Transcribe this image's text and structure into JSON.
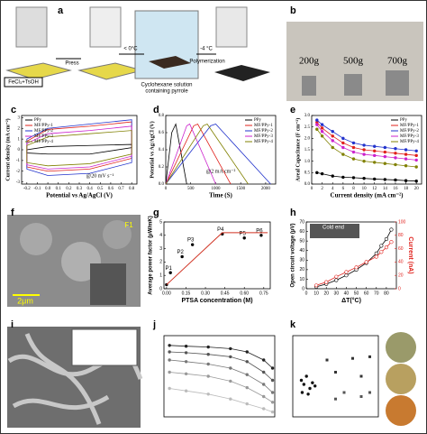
{
  "figure": {
    "labels": [
      "a",
      "b",
      "c",
      "d",
      "e",
      "f",
      "g",
      "h",
      "i",
      "j",
      "k"
    ],
    "a_texts": [
      "FeCl₃+TsOH",
      "Press",
      "< 0°C",
      "Cyclohexane solution",
      "containing pyrrole",
      "-4 °C",
      "Polymerization"
    ],
    "b_texts": [
      "200g",
      "500g",
      "700g"
    ],
    "f_texts": [
      "2μm",
      "F1"
    ]
  },
  "chart_data": [
    {
      "type": "line",
      "closed": true,
      "xlabel": "Potential vs Ag/AgCl (V)",
      "ylabel": "Current density (mA cm⁻²)",
      "annotations": [
        "@20 mV s⁻¹"
      ],
      "legend": "upper left",
      "xlim": [
        -0.25,
        0.85
      ],
      "xticks": [
        -0.2,
        -0.1,
        {
          "value": 0,
          "label": "0.0"
        },
        0.1,
        0.2,
        0.3,
        0.4,
        0.5,
        0.6,
        0.7,
        0.8
      ],
      "ylim": [
        -3.2,
        3.2
      ],
      "yticks": [
        -3,
        -2,
        -1,
        0,
        1,
        2,
        3
      ],
      "series": [
        {
          "name": "PPy",
          "color": "#000000",
          "x": [
            -0.2,
            0,
            0.4,
            0.8,
            0.8,
            0.4,
            0,
            -0.2
          ],
          "values": [
            -0.3,
            -0.4,
            -0.4,
            0.2,
            0.5,
            0.4,
            0.3,
            0
          ]
        },
        {
          "name": "MF/PPy-1",
          "color": "#e0201b",
          "x": [
            -0.2,
            0,
            0.4,
            0.8,
            0.8,
            0.4,
            0,
            -0.2
          ],
          "values": [
            -1.6,
            -2.0,
            -1.8,
            -0.8,
            2.6,
            2.2,
            1.9,
            0.8
          ]
        },
        {
          "name": "MF/PPy-2",
          "color": "#2233cc",
          "x": [
            -0.2,
            0,
            0.4,
            0.8,
            0.8,
            0.4,
            0,
            -0.2
          ],
          "values": [
            -1.8,
            -2.4,
            -2.2,
            -1.2,
            2.8,
            2.4,
            2.0,
            1.0
          ]
        },
        {
          "name": "MF/PPy-3",
          "color": "#cc22cc",
          "x": [
            -0.2,
            0,
            0.4,
            0.8,
            0.8,
            0.4,
            0,
            -0.2
          ],
          "values": [
            -1.4,
            -1.8,
            -1.6,
            -0.6,
            2.2,
            1.8,
            1.5,
            0.6
          ]
        },
        {
          "name": "MF/PPy-4",
          "color": "#808000",
          "x": [
            -0.2,
            0,
            0.4,
            0.8,
            0.8,
            0.4,
            0,
            -0.2
          ],
          "values": [
            -1.2,
            -1.5,
            -1.3,
            -0.4,
            1.8,
            1.5,
            1.2,
            0.4
          ]
        }
      ]
    },
    {
      "type": "line",
      "xlabel": "Time (S)",
      "ylabel": "Potential vs Ag/AgCl (V)",
      "annotations": [
        "@2 mA cm⁻²"
      ],
      "legend": "upper right",
      "xlim": [
        0,
        2200
      ],
      "xticks": [
        0,
        500,
        1000,
        1500,
        2000
      ],
      "ylim": [
        0,
        0.8
      ],
      "yticks": [
        {
          "value": 0,
          "label": "0.0"
        },
        0.2,
        0.4,
        0.6,
        0.8
      ],
      "series": [
        {
          "name": "PPy",
          "color": "#000000",
          "x": [
            0,
            120,
            200,
            420
          ],
          "values": [
            0,
            0.6,
            0.7,
            0
          ]
        },
        {
          "name": "MF/PPy-1",
          "color": "#e0201b",
          "x": [
            0,
            560,
            640,
            1300
          ],
          "values": [
            0,
            0.68,
            0.7,
            0
          ]
        },
        {
          "name": "MF/PPy-2",
          "color": "#2233cc",
          "x": [
            0,
            900,
            1000,
            2100
          ],
          "values": [
            0,
            0.68,
            0.7,
            0
          ]
        },
        {
          "name": "MF/PPy-3",
          "color": "#cc22cc",
          "x": [
            0,
            420,
            480,
            1000
          ],
          "values": [
            0,
            0.68,
            0.7,
            0
          ]
        },
        {
          "name": "MF/PPy-4",
          "color": "#808000",
          "x": [
            0,
            750,
            830,
            1650
          ],
          "values": [
            0,
            0.68,
            0.7,
            0
          ]
        }
      ]
    },
    {
      "type": "line",
      "markers": true,
      "xlabel": "Current density (mA cm⁻²)",
      "ylabel": "Areal Capacitance (F cm⁻²)",
      "legend": "upper right",
      "xlim": [
        0,
        21
      ],
      "xticks": [
        0,
        2,
        4,
        6,
        8,
        10,
        12,
        14,
        16,
        18,
        20
      ],
      "ylim": [
        0,
        3
      ],
      "yticks": [
        {
          "value": 0,
          "label": "0.0"
        },
        0.5,
        {
          "value": 1,
          "label": "1.0"
        },
        1.5,
        {
          "value": 2,
          "label": "2.0"
        },
        2.5,
        {
          "value": 3,
          "label": "3.0"
        }
      ],
      "series": [
        {
          "name": "PPy",
          "color": "#000000",
          "x": [
            1,
            2,
            4,
            6,
            8,
            10,
            12,
            14,
            16,
            18,
            20
          ],
          "values": [
            0.5,
            0.45,
            0.35,
            0.3,
            0.28,
            0.25,
            0.22,
            0.2,
            0.18,
            0.15,
            0.13
          ]
        },
        {
          "name": "MF/PPy-1",
          "color": "#e0201b",
          "x": [
            1,
            2,
            4,
            6,
            8,
            10,
            12,
            14,
            16,
            18,
            20
          ],
          "values": [
            2.7,
            2.45,
            2.1,
            1.8,
            1.6,
            1.5,
            1.45,
            1.4,
            1.35,
            1.3,
            1.25
          ]
        },
        {
          "name": "MF/PPy-2",
          "color": "#2233cc",
          "x": [
            1,
            2,
            4,
            6,
            8,
            10,
            12,
            14,
            16,
            18,
            20
          ],
          "values": [
            2.8,
            2.6,
            2.3,
            2.0,
            1.8,
            1.7,
            1.65,
            1.6,
            1.55,
            1.5,
            1.45
          ]
        },
        {
          "name": "MF/PPy-3",
          "color": "#cc22cc",
          "x": [
            1,
            2,
            4,
            6,
            8,
            10,
            12,
            14,
            16,
            18,
            20
          ],
          "values": [
            2.6,
            2.3,
            1.9,
            1.6,
            1.4,
            1.3,
            1.25,
            1.2,
            1.15,
            1.1,
            1.05
          ]
        },
        {
          "name": "MF/PPy-4",
          "color": "#808000",
          "x": [
            1,
            2,
            4,
            6,
            8,
            10,
            12,
            14,
            16,
            18,
            20
          ],
          "values": [
            2.4,
            2.1,
            1.6,
            1.3,
            1.1,
            1.0,
            0.95,
            0.9,
            0.85,
            0.8,
            0.75
          ]
        }
      ]
    },
    {
      "type": "scatter",
      "xlabel": "PTSA concentration (M)",
      "ylabel": "Average power factor (μW/mK)",
      "xlim": [
        -0.02,
        0.8
      ],
      "xticks": [
        {
          "value": 0,
          "label": "0.00"
        },
        0.15,
        {
          "value": 0.3,
          "label": "0.30"
        },
        0.45,
        {
          "value": 0.6,
          "label": "0.60"
        },
        0.75
      ],
      "ylim": [
        0,
        5
      ],
      "yticks": [
        0,
        1,
        2,
        3,
        4,
        5
      ],
      "series": [
        {
          "color": "#000000",
          "x": [
            0,
            0.03,
            0.12,
            0.2,
            0.43,
            0.6,
            0.73
          ],
          "values": [
            0.3,
            1.2,
            2.4,
            3.3,
            4.1,
            3.8,
            4.0
          ],
          "point_labels": [
            null,
            "P1",
            "P2",
            "P3",
            "P4",
            "P5",
            "P6"
          ]
        },
        {
          "color": "#d03020",
          "fit": true,
          "x": [
            0,
            0.43,
            0.78
          ],
          "values": [
            0.3,
            4.2,
            4.2
          ]
        }
      ]
    },
    {
      "type": "line",
      "markers": true,
      "xlabel": "ΔT(°C)",
      "ylabel": "Open circuit voltage (μV)",
      "y2label": "Current (nA)",
      "annotations": [
        "Cold end"
      ],
      "xlim": [
        0,
        90
      ],
      "xticks": [
        0,
        10,
        20,
        30,
        40,
        50,
        60,
        70,
        80
      ],
      "ylim": [
        0,
        70
      ],
      "yticks": [
        0,
        10,
        20,
        30,
        40,
        50,
        60,
        70
      ],
      "y2lim": [
        0,
        100
      ],
      "y2ticks": [
        0,
        20,
        40,
        60,
        80,
        100
      ],
      "series": [
        {
          "color": "#000000",
          "x": [
            10,
            20,
            30,
            40,
            50,
            60,
            70,
            75,
            80,
            85
          ],
          "values": [
            2,
            5,
            9,
            14,
            20,
            27,
            37,
            45,
            52,
            62
          ]
        },
        {
          "color": "#e0201b",
          "axis": "y2",
          "x": [
            10,
            20,
            30,
            40,
            50,
            60,
            70,
            75,
            80,
            85
          ],
          "values": [
            5,
            10,
            18,
            25,
            32,
            40,
            48,
            55,
            62,
            70
          ]
        }
      ]
    },
    {
      "type": "line",
      "markers": true,
      "xlim": [
        0,
        100
      ],
      "ylim": [
        0,
        1
      ],
      "series": [
        {
          "color": "#222222",
          "x": [
            5,
            20,
            40,
            60,
            75,
            90,
            98
          ],
          "values": [
            0.88,
            0.87,
            0.86,
            0.84,
            0.8,
            0.7,
            0.6
          ]
        },
        {
          "color": "#555555",
          "x": [
            5,
            20,
            40,
            60,
            75,
            90,
            98
          ],
          "values": [
            0.8,
            0.79,
            0.77,
            0.74,
            0.68,
            0.55,
            0.45
          ]
        },
        {
          "color": "#777777",
          "x": [
            5,
            20,
            40,
            60,
            75,
            90,
            98
          ],
          "values": [
            0.7,
            0.68,
            0.65,
            0.6,
            0.52,
            0.4,
            0.3
          ]
        },
        {
          "color": "#999999",
          "x": [
            5,
            20,
            40,
            60,
            75,
            90,
            98
          ],
          "values": [
            0.55,
            0.53,
            0.5,
            0.44,
            0.36,
            0.25,
            0.18
          ]
        },
        {
          "color": "#bbbbbb",
          "x": [
            5,
            20,
            40,
            60,
            75,
            90,
            98
          ],
          "values": [
            0.35,
            0.32,
            0.28,
            0.22,
            0.16,
            0.1,
            0.06
          ]
        }
      ]
    },
    {
      "type": "scatter",
      "xlim": [
        0,
        10
      ],
      "ylim": [
        0,
        1
      ],
      "series": [
        {
          "color": "#111111",
          "x": [
            1,
            1.3,
            1.6,
            2,
            2.3,
            1.1,
            1.8,
            2.6
          ],
          "values": [
            0.45,
            0.4,
            0.5,
            0.35,
            0.42,
            0.3,
            0.28,
            0.38
          ]
        },
        {
          "color": "#333333",
          "x": [
            4,
            5,
            7,
            8,
            9
          ],
          "values": [
            0.7,
            0.55,
            0.72,
            0.5,
            0.74
          ]
        },
        {
          "color": "#555555",
          "x": [
            5,
            6,
            8,
            9
          ],
          "values": [
            0.22,
            0.3,
            0.25,
            0.3
          ]
        }
      ]
    }
  ]
}
